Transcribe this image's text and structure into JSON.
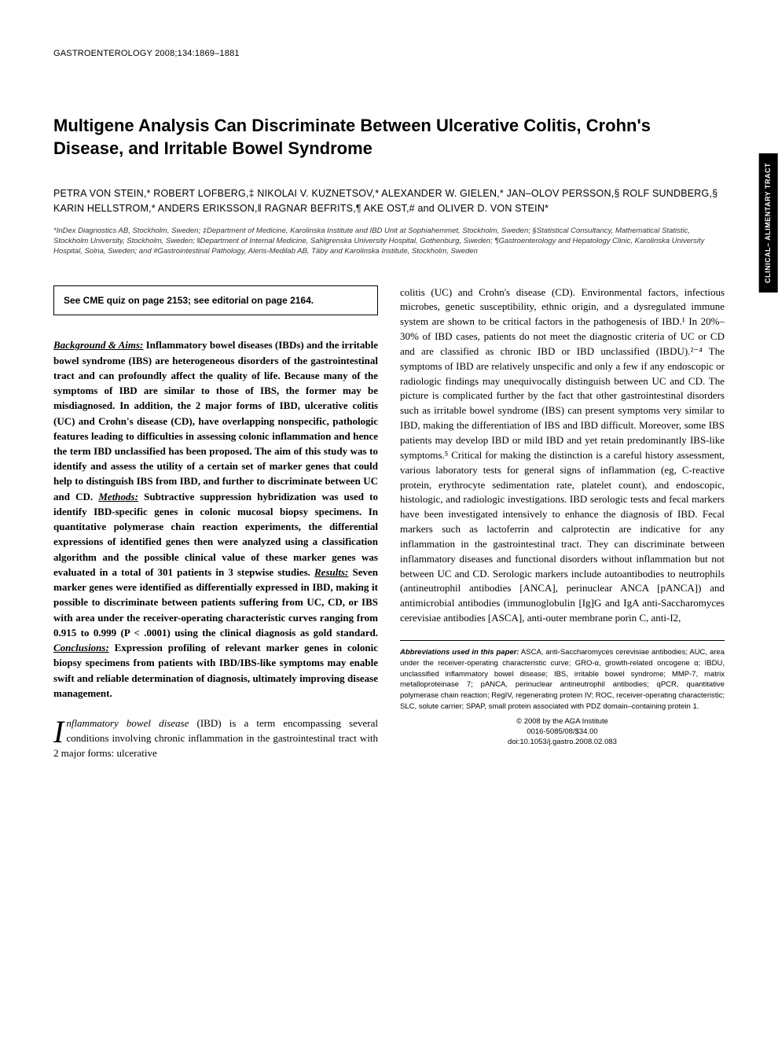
{
  "header": "GASTROENTEROLOGY 2008;134:1869–1881",
  "side_tab": "CLINICAL–\nALIMENTARY TRACT",
  "title": "Multigene Analysis Can Discriminate Between Ulcerative Colitis, Crohn's Disease, and Irritable Bowel Syndrome",
  "authors": "PETRA VON STEIN,* ROBERT LOFBERG,‡ NIKOLAI V. KUZNETSOV,* ALEXANDER W. GIELEN,* JAN–OLOV PERSSON,§ ROLF SUNDBERG,§ KARIN HELLSTROM,* ANDERS ERIKSSON,‖ RAGNAR BEFRITS,¶ AKE OST,# and OLIVER D. VON STEIN*",
  "affiliations": "*InDex Diagnostics AB, Stockholm, Sweden; ‡Department of Medicine, Karolinska Institute and IBD Unit at Sophiahemmet, Stockholm, Sweden; §Statistical Consultancy, Mathematical Statistic, Stockholm University, Stockholm, Sweden; ‖Department of Internal Medicine, Sahlgrenska University Hospital, Gothenburg, Sweden; ¶Gastroenterology and Hepatology Clinic, Karolinska University Hospital, Solna, Sweden; and #Gastrointestinal Pathology, Aleris-Medilab AB, Täby and Karolinska Institute, Stockholm, Sweden",
  "cme_box": "See CME quiz on page 2153; see editorial on page 2164.",
  "abstract": {
    "background_label": "Background & Aims:",
    "background": " Inflammatory bowel diseases (IBDs) and the irritable bowel syndrome (IBS) are heterogeneous disorders of the gastrointestinal tract and can profoundly affect the quality of life. Because many of the symptoms of IBD are similar to those of IBS, the former may be misdiagnosed. In addition, the 2 major forms of IBD, ulcerative colitis (UC) and Crohn's disease (CD), have overlapping nonspecific, pathologic features leading to difficulties in assessing colonic inflammation and hence the term IBD unclassified has been proposed. The aim of this study was to identify and assess the utility of a certain set of marker genes that could help to distinguish IBS from IBD, and further to discriminate between UC and CD. ",
    "methods_label": "Methods:",
    "methods": " Subtractive suppression hybridization was used to identify IBD-specific genes in colonic mucosal biopsy specimens. In quantitative polymerase chain reaction experiments, the differential expressions of identified genes then were analyzed using a classification algorithm and the possible clinical value of these marker genes was evaluated in a total of 301 patients in 3 stepwise studies. ",
    "results_label": "Results:",
    "results": " Seven marker genes were identified as differentially expressed in IBD, making it possible to discriminate between patients suffering from UC, CD, or IBS with area under the receiver-operating characteristic curves ranging from 0.915 to 0.999 (P < .0001) using the clinical diagnosis as gold standard. ",
    "conclusions_label": "Conclusions:",
    "conclusions": " Expression profiling of relevant marker genes in colonic biopsy specimens from patients with IBD/IBS-like symptoms may enable swift and reliable determination of diagnosis, ultimately improving disease management."
  },
  "intro": {
    "dropcap": "I",
    "lead": "nflammatory bowel disease",
    "p1_rest": " (IBD) is a term encompassing several conditions involving chronic inflammation in the gastrointestinal tract with 2 major forms: ulcerative",
    "p2": "colitis (UC) and Crohn's disease (CD). Environmental factors, infectious microbes, genetic susceptibility, ethnic origin, and a dysregulated immune system are shown to be critical factors in the pathogenesis of IBD.¹ In 20%–30% of IBD cases, patients do not meet the diagnostic criteria of UC or CD and are classified as chronic IBD or IBD unclassified (IBDU).²⁻⁴ The symptoms of IBD are relatively unspecific and only a few if any endoscopic or radiologic findings may unequivocally distinguish between UC and CD. The picture is complicated further by the fact that other gastrointestinal disorders such as irritable bowel syndrome (IBS) can present symptoms very similar to IBD, making the differentiation of IBS and IBD difficult. Moreover, some IBS patients may develop IBD or mild IBD and yet retain predominantly IBS-like symptoms.⁵ Critical for making the distinction is a careful history assessment, various laboratory tests for general signs of inflammation (eg, C-reactive protein, erythrocyte sedimentation rate, platelet count), and endoscopic, histologic, and radiologic investigations. IBD serologic tests and fecal markers have been investigated intensively to enhance the diagnosis of IBD. Fecal markers such as lactoferrin and calprotectin are indicative for any inflammation in the gastrointestinal tract. They can discriminate between inflammatory diseases and functional disorders without inflammation but not between UC and CD. Serologic markers include autoantibodies to neutrophils (antineutrophil antibodies [ANCA], perinuclear ANCA [pANCA]) and antimicrobial antibodies (immunoglobulin [Ig]G and IgA anti-Saccharomyces cerevisiae antibodies [ASCA], anti-outer membrane porin C, anti-I2,"
  },
  "abbrev": {
    "head": "Abbreviations used in this paper:",
    "body": " ASCA, anti-Saccharomyces cerevisiae antibodies; AUC, area under the receiver-operating characteristic curve; GRO-α, growth-related oncogene α; IBDU, unclassified inflammatory bowel disease; IBS, irritable bowel syndrome; MMP-7, matrix metalloproteinase 7; pANCA, perinuclear antineutrophil antibodies; qPCR, quantitative polymerase chain reaction; RegIV, regenerating protein IV; ROC, receiver-operating characteristic; SLC, solute carrier; SPAP, small protein associated with PDZ domain–containing protein 1."
  },
  "copyright": "© 2008 by the AGA Institute",
  "issn": "0016-5085/08/$34.00",
  "doi": "doi:10.1053/j.gastro.2008.02.083"
}
